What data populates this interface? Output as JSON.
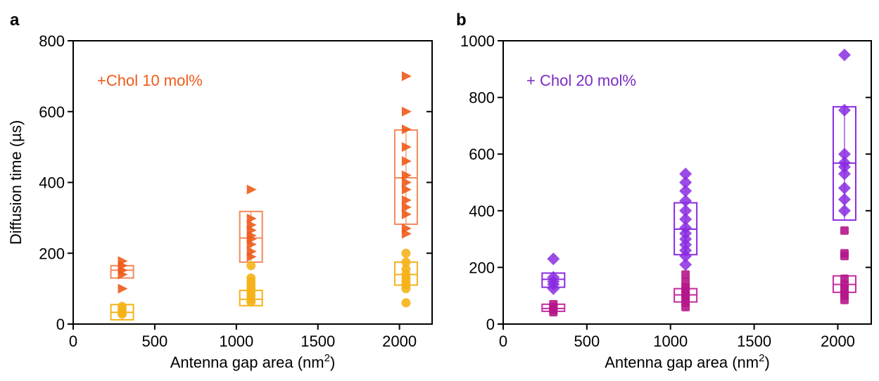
{
  "chart_data": [
    {
      "panel_label": "a",
      "type": "scatter",
      "xlabel": "Antenna gap area (nm",
      "xlabel_sup": "2",
      "xlabel_end": ")",
      "ylabel": "Diffusion time (µs)",
      "xlim": [
        0,
        2200
      ],
      "ylim": [
        0,
        800
      ],
      "xticks": [
        0,
        500,
        1000,
        1500,
        2000
      ],
      "yticks": [
        0,
        200,
        400,
        600,
        800
      ],
      "annotation": "+Chol 10 mol%",
      "annotation_color": "#f05a1a",
      "series": [
        {
          "marker": "triangle",
          "color": "#f05a1a",
          "box_color": "#f28a5c",
          "points": [
            {
              "x": 300,
              "y": 178
            },
            {
              "x": 300,
              "y": 165
            },
            {
              "x": 300,
              "y": 152
            },
            {
              "x": 300,
              "y": 140
            },
            {
              "x": 300,
              "y": 100
            },
            {
              "x": 1090,
              "y": 380
            },
            {
              "x": 1090,
              "y": 298
            },
            {
              "x": 1090,
              "y": 280
            },
            {
              "x": 1090,
              "y": 265
            },
            {
              "x": 1090,
              "y": 250
            },
            {
              "x": 1090,
              "y": 240
            },
            {
              "x": 1090,
              "y": 225
            },
            {
              "x": 1090,
              "y": 205
            },
            {
              "x": 1090,
              "y": 190
            },
            {
              "x": 2040,
              "y": 700
            },
            {
              "x": 2040,
              "y": 600
            },
            {
              "x": 2040,
              "y": 550
            },
            {
              "x": 2040,
              "y": 500
            },
            {
              "x": 2040,
              "y": 460
            },
            {
              "x": 2040,
              "y": 420
            },
            {
              "x": 2040,
              "y": 400
            },
            {
              "x": 2040,
              "y": 380
            },
            {
              "x": 2040,
              "y": 350
            },
            {
              "x": 2040,
              "y": 330
            },
            {
              "x": 2040,
              "y": 310
            },
            {
              "x": 2040,
              "y": 270
            },
            {
              "x": 2040,
              "y": 255
            }
          ],
          "boxes": [
            {
              "x": 300,
              "low": 130,
              "median": 152,
              "high": 165
            },
            {
              "x": 1090,
              "low": 175,
              "median": 243,
              "high": 318
            },
            {
              "x": 2040,
              "low": 282,
              "median": 413,
              "high": 548
            }
          ]
        },
        {
          "marker": "circle",
          "color": "#f5b21a",
          "box_color": "#f5b21a",
          "points": [
            {
              "x": 300,
              "y": 50
            },
            {
              "x": 300,
              "y": 40
            },
            {
              "x": 300,
              "y": 32
            },
            {
              "x": 300,
              "y": 28
            },
            {
              "x": 1090,
              "y": 165
            },
            {
              "x": 1090,
              "y": 130
            },
            {
              "x": 1090,
              "y": 120
            },
            {
              "x": 1090,
              "y": 110
            },
            {
              "x": 1090,
              "y": 100
            },
            {
              "x": 1090,
              "y": 90
            },
            {
              "x": 1090,
              "y": 80
            },
            {
              "x": 1090,
              "y": 70
            },
            {
              "x": 1090,
              "y": 62
            },
            {
              "x": 2040,
              "y": 200
            },
            {
              "x": 2040,
              "y": 175
            },
            {
              "x": 2040,
              "y": 155
            },
            {
              "x": 2040,
              "y": 140
            },
            {
              "x": 2040,
              "y": 130
            },
            {
              "x": 2040,
              "y": 120
            },
            {
              "x": 2040,
              "y": 110
            },
            {
              "x": 2040,
              "y": 100
            },
            {
              "x": 2040,
              "y": 60
            }
          ],
          "boxes": [
            {
              "x": 300,
              "low": 12,
              "median": 33,
              "high": 55
            },
            {
              "x": 1090,
              "low": 52,
              "median": 70,
              "high": 95
            },
            {
              "x": 2040,
              "low": 110,
              "median": 140,
              "high": 175
            }
          ]
        }
      ]
    },
    {
      "panel_label": "b",
      "type": "scatter",
      "xlabel": "Antenna gap area (nm",
      "xlabel_sup": "2",
      "xlabel_end": ")",
      "ylabel": "",
      "xlim": [
        0,
        2200
      ],
      "ylim": [
        0,
        1000
      ],
      "xticks": [
        0,
        500,
        1000,
        1500,
        2000
      ],
      "yticks": [
        0,
        200,
        400,
        600,
        800,
        1000
      ],
      "annotation": "+ Chol 20 mol%",
      "annotation_color": "#7b2cc4",
      "series": [
        {
          "marker": "diamond",
          "color": "#8a2be2",
          "box_color": "#8a2be2",
          "points": [
            {
              "x": 300,
              "y": 230
            },
            {
              "x": 300,
              "y": 165
            },
            {
              "x": 300,
              "y": 150
            },
            {
              "x": 300,
              "y": 140
            },
            {
              "x": 300,
              "y": 125
            },
            {
              "x": 1090,
              "y": 530
            },
            {
              "x": 1090,
              "y": 500
            },
            {
              "x": 1090,
              "y": 470
            },
            {
              "x": 1090,
              "y": 435
            },
            {
              "x": 1090,
              "y": 400
            },
            {
              "x": 1090,
              "y": 370
            },
            {
              "x": 1090,
              "y": 340
            },
            {
              "x": 1090,
              "y": 320
            },
            {
              "x": 1090,
              "y": 300
            },
            {
              "x": 1090,
              "y": 280
            },
            {
              "x": 1090,
              "y": 260
            },
            {
              "x": 1090,
              "y": 240
            },
            {
              "x": 1090,
              "y": 210
            },
            {
              "x": 2040,
              "y": 950
            },
            {
              "x": 2040,
              "y": 755
            },
            {
              "x": 2040,
              "y": 600
            },
            {
              "x": 2040,
              "y": 570
            },
            {
              "x": 2040,
              "y": 555
            },
            {
              "x": 2040,
              "y": 530
            },
            {
              "x": 2040,
              "y": 480
            },
            {
              "x": 2040,
              "y": 440
            },
            {
              "x": 2040,
              "y": 400
            }
          ],
          "boxes": [
            {
              "x": 300,
              "low": 130,
              "median": 158,
              "high": 180
            },
            {
              "x": 1090,
              "low": 245,
              "median": 335,
              "high": 428
            },
            {
              "x": 2040,
              "low": 367,
              "median": 568,
              "high": 767
            }
          ]
        },
        {
          "marker": "square",
          "color": "#b5178a",
          "box_color": "#c42aa0",
          "points": [
            {
              "x": 300,
              "y": 70
            },
            {
              "x": 300,
              "y": 60
            },
            {
              "x": 300,
              "y": 50
            },
            {
              "x": 300,
              "y": 42
            },
            {
              "x": 1090,
              "y": 175
            },
            {
              "x": 1090,
              "y": 150
            },
            {
              "x": 1090,
              "y": 130
            },
            {
              "x": 1090,
              "y": 120
            },
            {
              "x": 1090,
              "y": 110
            },
            {
              "x": 1090,
              "y": 100
            },
            {
              "x": 1090,
              "y": 90
            },
            {
              "x": 1090,
              "y": 75
            },
            {
              "x": 1090,
              "y": 60
            },
            {
              "x": 2040,
              "y": 330
            },
            {
              "x": 2040,
              "y": 250
            },
            {
              "x": 2040,
              "y": 240
            },
            {
              "x": 2040,
              "y": 160
            },
            {
              "x": 2040,
              "y": 140
            },
            {
              "x": 2040,
              "y": 125
            },
            {
              "x": 2040,
              "y": 110
            },
            {
              "x": 2040,
              "y": 100
            },
            {
              "x": 2040,
              "y": 85
            }
          ],
          "boxes": [
            {
              "x": 300,
              "low": 45,
              "median": 55,
              "high": 70
            },
            {
              "x": 1090,
              "low": 78,
              "median": 103,
              "high": 125
            },
            {
              "x": 2040,
              "low": 112,
              "median": 140,
              "high": 170
            }
          ]
        }
      ]
    }
  ]
}
